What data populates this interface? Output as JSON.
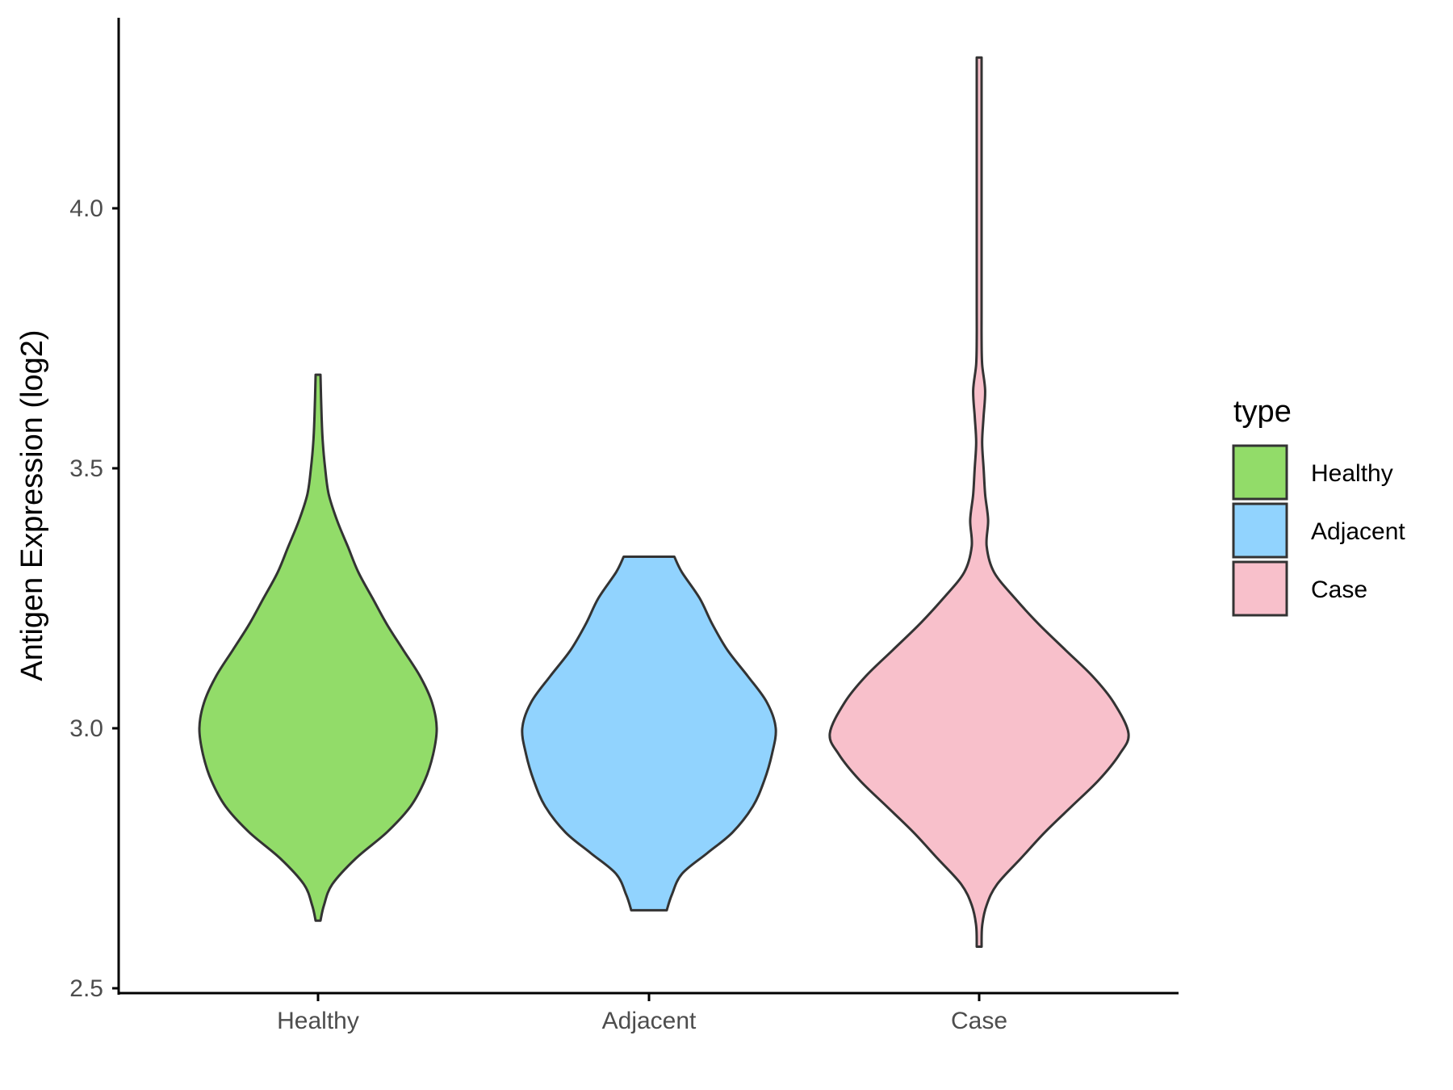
{
  "chart_data": {
    "type": "violin",
    "ylabel": "Antigen Expression (log2)",
    "xlabel": "",
    "ylim": [
      2.5,
      4.3
    ],
    "yticks": [
      2.5,
      3.0,
      3.5,
      4.0
    ],
    "ytick_labels": [
      "2.5",
      "3.0",
      "3.5",
      "4.0"
    ],
    "categories": [
      "Healthy",
      "Adjacent",
      "Case"
    ],
    "legend": {
      "title": "type",
      "placement": "right",
      "entries": [
        "Healthy",
        "Adjacent",
        "Case"
      ]
    },
    "colors": {
      "Healthy": "#92dc69",
      "Adjacent": "#91d3fe",
      "Case": "#f8c0cb",
      "outline": "#333333"
    },
    "series": [
      {
        "name": "Healthy",
        "min": 2.63,
        "max": 3.68,
        "density_profile": [
          [
            2.63,
            0.02
          ],
          [
            2.66,
            0.05
          ],
          [
            2.7,
            0.12
          ],
          [
            2.75,
            0.32
          ],
          [
            2.8,
            0.58
          ],
          [
            2.85,
            0.78
          ],
          [
            2.9,
            0.9
          ],
          [
            2.95,
            0.97
          ],
          [
            3.0,
            1.0
          ],
          [
            3.05,
            0.96
          ],
          [
            3.1,
            0.86
          ],
          [
            3.15,
            0.72
          ],
          [
            3.2,
            0.58
          ],
          [
            3.25,
            0.46
          ],
          [
            3.3,
            0.34
          ],
          [
            3.35,
            0.25
          ],
          [
            3.4,
            0.16
          ],
          [
            3.45,
            0.09
          ],
          [
            3.5,
            0.06
          ],
          [
            3.55,
            0.04
          ],
          [
            3.6,
            0.03
          ],
          [
            3.68,
            0.02
          ]
        ]
      },
      {
        "name": "Adjacent",
        "min": 2.65,
        "max": 3.33,
        "density_profile": [
          [
            2.65,
            0.14
          ],
          [
            2.68,
            0.18
          ],
          [
            2.72,
            0.26
          ],
          [
            2.76,
            0.46
          ],
          [
            2.8,
            0.66
          ],
          [
            2.85,
            0.82
          ],
          [
            2.9,
            0.91
          ],
          [
            2.95,
            0.97
          ],
          [
            3.0,
            1.0
          ],
          [
            3.05,
            0.93
          ],
          [
            3.1,
            0.78
          ],
          [
            3.15,
            0.62
          ],
          [
            3.2,
            0.5
          ],
          [
            3.25,
            0.4
          ],
          [
            3.3,
            0.26
          ],
          [
            3.33,
            0.2
          ]
        ]
      },
      {
        "name": "Case",
        "min": 2.58,
        "max": 4.29,
        "density_profile": [
          [
            2.58,
            0.01
          ],
          [
            2.62,
            0.02
          ],
          [
            2.66,
            0.05
          ],
          [
            2.7,
            0.12
          ],
          [
            2.75,
            0.28
          ],
          [
            2.8,
            0.44
          ],
          [
            2.85,
            0.62
          ],
          [
            2.9,
            0.8
          ],
          [
            2.95,
            0.94
          ],
          [
            2.99,
            1.0
          ],
          [
            3.05,
            0.9
          ],
          [
            3.1,
            0.76
          ],
          [
            3.15,
            0.58
          ],
          [
            3.2,
            0.4
          ],
          [
            3.25,
            0.24
          ],
          [
            3.3,
            0.1
          ],
          [
            3.35,
            0.05
          ],
          [
            3.4,
            0.06
          ],
          [
            3.45,
            0.04
          ],
          [
            3.5,
            0.03
          ],
          [
            3.55,
            0.02
          ],
          [
            3.6,
            0.03
          ],
          [
            3.65,
            0.04
          ],
          [
            3.7,
            0.02
          ],
          [
            3.75,
            0.01
          ],
          [
            3.8,
            0.005
          ],
          [
            3.9,
            0.005
          ],
          [
            4.0,
            0.005
          ],
          [
            4.1,
            0.005
          ],
          [
            4.15,
            0.008
          ],
          [
            4.2,
            0.012
          ],
          [
            4.25,
            0.014
          ],
          [
            4.29,
            0.012
          ]
        ]
      }
    ]
  }
}
